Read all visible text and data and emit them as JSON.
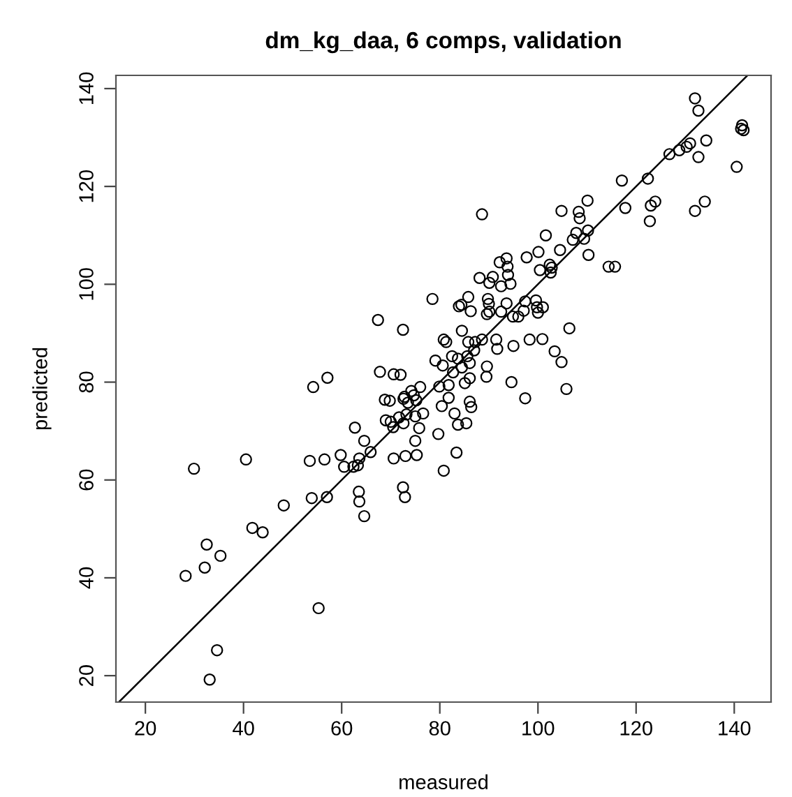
{
  "chart_data": {
    "type": "scatter",
    "title": "dm_kg_daa, 6 comps, validation",
    "xlabel": "measured",
    "ylabel": "predicted",
    "xlim": [
      14,
      147.5
    ],
    "ylim": [
      14.6,
      142.7
    ],
    "xticks": [
      20,
      40,
      60,
      80,
      100,
      120,
      140
    ],
    "yticks": [
      20,
      40,
      60,
      80,
      100,
      120,
      140
    ],
    "grid": false,
    "legend": false,
    "marker": "circle",
    "series": [
      {
        "color": "#000000",
        "x": [
          79.1,
          80.6,
          67.8,
          70.6,
          72.0,
          54.2,
          57.1,
          76.0,
          74.2,
          79.9,
          68.8,
          69.8,
          72.6,
          80.4,
          69.0,
          70.0,
          70.5,
          71.7,
          73.2,
          72.6,
          75.0,
          76.6,
          75.8,
          79.7,
          62.7,
          64.6,
          75.0,
          59.8,
          60.5,
          62.4,
          63.3,
          63.6,
          65.9,
          70.6,
          73.0,
          75.3,
          80.8,
          29.9,
          40.5,
          53.5,
          56.5,
          48.2,
          53.9,
          57.0,
          63.5,
          63.6,
          64.6,
          72.5,
          72.9,
          41.8,
          43.9,
          32.5,
          32.1,
          35.3,
          28.2,
          55.3,
          34.6,
          33.1,
          132.0,
          132.7,
          141.6,
          141.4,
          141.9,
          134.3,
          131.0,
          130.3,
          128.8,
          126.8,
          132.7,
          140.5,
          117.1,
          122.4,
          117.8,
          123.0,
          123.9,
          122.8,
          132.0,
          134.0,
          88.6,
          110.1,
          104.8,
          108.3,
          108.5,
          110.2,
          107.8,
          107.1,
          109.4,
          101.6,
          104.5,
          110.3,
          114.4,
          115.7,
          97.7,
          100.1,
          93.6,
          93.8,
          92.2,
          93.9,
          94.4,
          100.4,
          102.4,
          102.8,
          102.6,
          88.1,
          90.8,
          90.1,
          92.5,
          78.5,
          85.8,
          83.9,
          84.4,
          86.3,
          89.8,
          90.0,
          89.6,
          90.1,
          93.6,
          92.5,
          94.9,
          96.0,
          97.1,
          97.4,
          99.6,
          99.8,
          100.0,
          101.0,
          106.4,
          84.5,
          80.8,
          81.3,
          85.8,
          87.2,
          88.6,
          91.5,
          91.7,
          95.0,
          98.3,
          100.9,
          82.5,
          83.7,
          85.6,
          86.1,
          89.6,
          103.4,
          104.8,
          105.8,
          97.4,
          94.6,
          89.5,
          87.0,
          84.5,
          82.7,
          81.8,
          85.1,
          86.1,
          81.8,
          86.1,
          86.4,
          83.0,
          83.7,
          85.4,
          83.4,
          67.4,
          72.5,
          72.8,
          74.7,
          73.5,
          75.2
        ],
        "values": [
          84.4,
          83.4,
          82.1,
          81.6,
          81.5,
          79.0,
          80.9,
          79.0,
          78.2,
          79.1,
          76.4,
          76.2,
          76.6,
          75.1,
          72.2,
          71.9,
          70.8,
          72.8,
          73.4,
          71.6,
          73.0,
          73.6,
          70.6,
          69.4,
          70.7,
          68.0,
          68.0,
          65.1,
          62.7,
          62.7,
          63.0,
          64.4,
          65.7,
          64.4,
          64.9,
          65.1,
          61.9,
          62.3,
          64.2,
          63.9,
          64.2,
          54.8,
          56.3,
          56.5,
          57.6,
          55.6,
          52.6,
          58.5,
          56.5,
          50.2,
          49.3,
          46.8,
          42.1,
          44.5,
          40.4,
          33.8,
          25.2,
          19.2,
          138.0,
          135.5,
          132.5,
          131.8,
          131.5,
          129.4,
          128.8,
          128.1,
          127.4,
          126.6,
          126.0,
          124.0,
          121.2,
          121.6,
          115.6,
          116.1,
          116.9,
          112.9,
          115.0,
          116.9,
          114.3,
          117.1,
          115.0,
          114.8,
          113.5,
          111.0,
          110.5,
          109.1,
          109.3,
          110.0,
          107.0,
          106.0,
          103.6,
          103.6,
          105.5,
          106.6,
          105.3,
          103.6,
          104.5,
          101.9,
          100.1,
          102.9,
          104.0,
          103.4,
          102.4,
          101.3,
          101.5,
          100.3,
          99.6,
          97.0,
          97.4,
          95.5,
          95.8,
          94.5,
          97.0,
          96.0,
          93.9,
          94.4,
          96.1,
          94.4,
          93.4,
          93.4,
          94.6,
          96.5,
          96.7,
          95.3,
          94.2,
          95.3,
          91.0,
          90.5,
          88.7,
          88.2,
          88.2,
          88.2,
          88.7,
          88.7,
          86.8,
          87.4,
          88.7,
          88.8,
          85.3,
          84.8,
          85.3,
          83.9,
          83.2,
          86.3,
          84.1,
          78.6,
          76.7,
          80.0,
          81.1,
          86.5,
          83.0,
          82.0,
          79.4,
          79.8,
          80.8,
          76.8,
          76.0,
          74.9,
          73.6,
          71.3,
          71.6,
          65.6,
          92.7,
          90.7,
          77.0,
          77.3,
          75.8,
          76.3
        ]
      },
      {
        "type": "line",
        "color": "#000000",
        "line_style": "solid",
        "marker": "none",
        "x": [
          14.6,
          142.7
        ],
        "values": [
          14.6,
          142.7
        ]
      }
    ]
  }
}
